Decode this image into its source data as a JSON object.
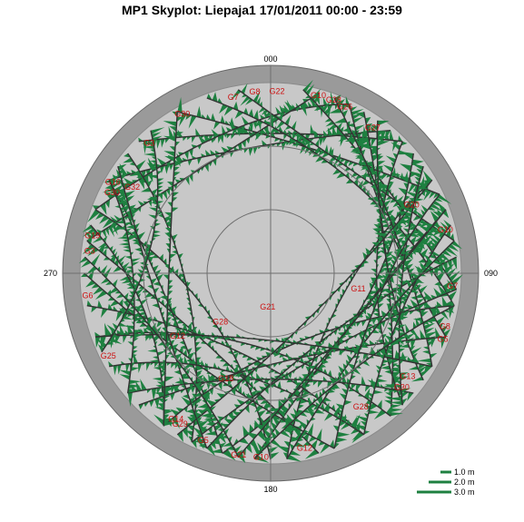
{
  "chart_data": {
    "type": "scatter",
    "title": "MP1 Skyplot: Liepaja1 17/01/2011 00:00 - 23:59",
    "coordinate_system": "polar",
    "angle_axis": "azimuth (degrees, clockwise from north)",
    "radius_axis": "elevation (degrees, 90 at centre, 0 at rim)",
    "azimuth_labels": [
      "000",
      "090",
      "180",
      "270"
    ],
    "elevation_rings": [
      30,
      60
    ],
    "grid": true,
    "legend_position": "bottom-right",
    "legend": [
      {
        "label": "1.0 m",
        "value": 1.0
      },
      {
        "label": "2.0 m",
        "value": 2.0
      },
      {
        "label": "3.0 m",
        "value": 3.0
      }
    ],
    "colors": {
      "track": "#333333",
      "multipath": "#1e8040",
      "sky_disk": "#c8c8c8",
      "horizon_band": "#9a9a9a",
      "label": "#cc1111"
    },
    "satellite_labels": [
      {
        "prn": "G7",
        "az": 348,
        "el": 5
      },
      {
        "prn": "G8",
        "az": 355,
        "el": 4
      },
      {
        "prn": "G22",
        "az": 2,
        "el": 4
      },
      {
        "prn": "G10",
        "az": 15,
        "el": 3
      },
      {
        "prn": "G26",
        "az": 24,
        "el": 4
      },
      {
        "prn": "G28",
        "az": 20,
        "el": 3
      },
      {
        "prn": "G27",
        "az": 35,
        "el": 6
      },
      {
        "prn": "G30",
        "az": 331,
        "el": 4
      },
      {
        "prn": "G3",
        "az": 317,
        "el": 6
      },
      {
        "prn": "G16",
        "az": 300,
        "el": 4
      },
      {
        "prn": "G30",
        "az": 297,
        "el": 6
      },
      {
        "prn": "G32",
        "az": 302,
        "el": 13
      },
      {
        "prn": "G19",
        "az": 282,
        "el": 4
      },
      {
        "prn": "G3",
        "az": 277,
        "el": 4
      },
      {
        "prn": "G6",
        "az": 263,
        "el": 3
      },
      {
        "prn": "G25",
        "az": 243,
        "el": 4
      },
      {
        "prn": "G12",
        "az": 236,
        "el": 37
      },
      {
        "prn": "G28",
        "az": 226,
        "el": 57
      },
      {
        "prn": "G21",
        "az": 185,
        "el": 74
      },
      {
        "prn": "G18",
        "az": 203,
        "el": 36
      },
      {
        "prn": "G14",
        "az": 213,
        "el": 8
      },
      {
        "prn": "G29",
        "az": 211,
        "el": 7
      },
      {
        "prn": "G5",
        "az": 202,
        "el": 5
      },
      {
        "prn": "G21",
        "az": 190,
        "el": 3
      },
      {
        "prn": "G10",
        "az": 183,
        "el": 3
      },
      {
        "prn": "G12",
        "az": 169,
        "el": 6
      },
      {
        "prn": "G28",
        "az": 146,
        "el": 14
      },
      {
        "prn": "G11",
        "az": 100,
        "el": 48
      },
      {
        "prn": "G20",
        "az": 64,
        "el": 16
      },
      {
        "prn": "G10",
        "az": 76,
        "el": 5
      },
      {
        "prn": "G7",
        "az": 94,
        "el": 4
      },
      {
        "prn": "G8",
        "az": 107,
        "el": 4
      },
      {
        "prn": "G5",
        "az": 111,
        "el": 3
      },
      {
        "prn": "G13",
        "az": 127,
        "el": 9
      },
      {
        "prn": "G30",
        "az": 131,
        "el": 8
      }
    ]
  }
}
